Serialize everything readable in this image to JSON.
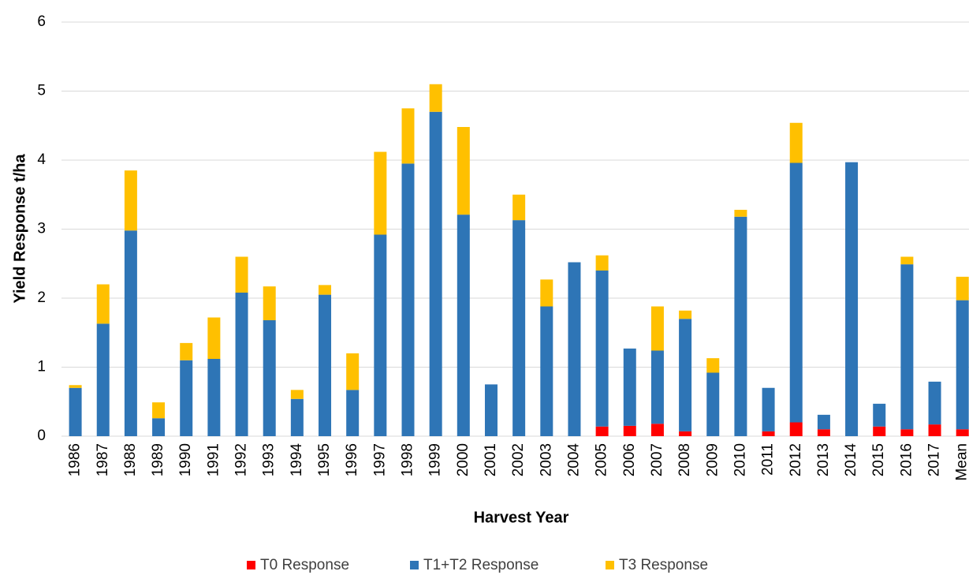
{
  "chart_data": {
    "type": "stacked_bar",
    "x_label": "Harvest Year",
    "y_label": "Yield Response t/ha",
    "categories": [
      "1986",
      "1987",
      "1988",
      "1989",
      "1990",
      "1991",
      "1992",
      "1993",
      "1994",
      "1995",
      "1996",
      "1997",
      "1998",
      "1999",
      "2000",
      "2001",
      "2002",
      "2003",
      "2004",
      "2005",
      "2006",
      "2007",
      "2008",
      "2009",
      "2010",
      "2011",
      "2012",
      "2013",
      "2014",
      "2015",
      "2016",
      "2017",
      "Mean"
    ],
    "series": [
      {
        "name": "T0 Response",
        "color": "#ff0000",
        "values": [
          0,
          0,
          0,
          0,
          0,
          0,
          0,
          0,
          0,
          0,
          0,
          0,
          0,
          0,
          0,
          0,
          0,
          0,
          0,
          0.14,
          0.15,
          0.18,
          0.07,
          0,
          0,
          0.07,
          0.2,
          0.1,
          0,
          0.14,
          0.1,
          0.17,
          0.1
        ]
      },
      {
        "name": "T1+T2 Response",
        "color": "#2e75b6",
        "values": [
          0.7,
          1.63,
          2.98,
          0.26,
          1.1,
          1.12,
          2.08,
          1.68,
          0.54,
          2.05,
          0.67,
          2.92,
          3.95,
          4.7,
          3.21,
          0.75,
          3.13,
          1.88,
          2.52,
          2.26,
          1.12,
          1.06,
          1.63,
          0.92,
          3.18,
          0.63,
          3.76,
          0.21,
          3.97,
          0.33,
          2.39,
          0.62,
          1.87
        ]
      },
      {
        "name": "T3 Response",
        "color": "#ffc000",
        "values": [
          0.04,
          0.57,
          0.87,
          0.23,
          0.25,
          0.6,
          0.52,
          0.49,
          0.13,
          0.14,
          0.53,
          1.2,
          0.8,
          0.4,
          1.27,
          0,
          0.37,
          0.39,
          0,
          0.22,
          0,
          0.64,
          0.12,
          0.21,
          0.1,
          0,
          0.58,
          0,
          0,
          0,
          0.11,
          0,
          0.34
        ]
      }
    ],
    "ylim": [
      0,
      6
    ],
    "yticks": [
      0,
      1,
      2,
      3,
      4,
      5,
      6
    ],
    "grid": true,
    "legend": "bottom"
  }
}
